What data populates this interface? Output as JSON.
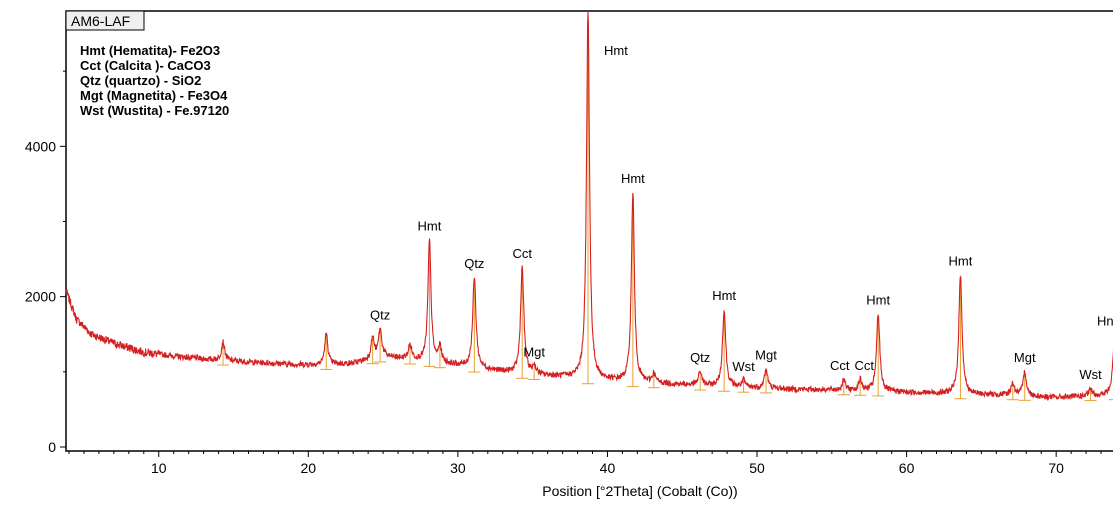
{
  "chart_data": {
    "type": "line",
    "title": "AM6-LAF",
    "xlabel": "Position [°2Theta] (Cobalt (Co))",
    "ylabel": "",
    "xlim": [
      3.8,
      74
    ],
    "ylim": [
      0,
      5800
    ],
    "xticks": [
      10,
      20,
      30,
      40,
      50,
      60,
      70
    ],
    "yticks": [
      0,
      2000,
      4000
    ],
    "grid": false,
    "legend_position": "top-left",
    "line_color": "#d42020",
    "peak_color": "#e8a030",
    "legend": [
      "Hmt (Hematita)- Fe2O3",
      "Cct (Calcita )- CaCO3",
      "Qtz (quartzo) - SiO2",
      "Mgt (Magnetita) - Fe3O4",
      "Wst (Wustita) - Fe.97120"
    ],
    "baseline": [
      [
        3.8,
        2080
      ],
      [
        4.5,
        1700
      ],
      [
        5.5,
        1500
      ],
      [
        7,
        1380
      ],
      [
        9,
        1260
      ],
      [
        11,
        1210
      ],
      [
        13,
        1170
      ],
      [
        15,
        1140
      ],
      [
        17,
        1120
      ],
      [
        19,
        1100
      ],
      [
        21,
        1090
      ],
      [
        23,
        1110
      ],
      [
        25,
        1200
      ],
      [
        27,
        1160
      ],
      [
        29,
        1110
      ],
      [
        31,
        1060
      ],
      [
        33,
        1000
      ],
      [
        35,
        960
      ],
      [
        37,
        930
      ],
      [
        40,
        880
      ],
      [
        43,
        850
      ],
      [
        46,
        820
      ],
      [
        49,
        790
      ],
      [
        52,
        770
      ],
      [
        55,
        760
      ],
      [
        58,
        740
      ],
      [
        61,
        720
      ],
      [
        64,
        700
      ],
      [
        67,
        690
      ],
      [
        70,
        660
      ],
      [
        74,
        690
      ]
    ],
    "peaks": [
      {
        "x": 14.3,
        "y": 1400,
        "label": ""
      },
      {
        "x": 21.2,
        "y": 1500,
        "label": ""
      },
      {
        "x": 24.3,
        "y": 1450,
        "label": ""
      },
      {
        "x": 24.8,
        "y": 1560,
        "label": "Qtz"
      },
      {
        "x": 26.8,
        "y": 1350,
        "label": ""
      },
      {
        "x": 28.1,
        "y": 2750,
        "label": "Hmt"
      },
      {
        "x": 28.8,
        "y": 1320,
        "label": ""
      },
      {
        "x": 31.1,
        "y": 2250,
        "label": "Qtz"
      },
      {
        "x": 34.3,
        "y": 2380,
        "label": "Cct"
      },
      {
        "x": 35.1,
        "y": 1070,
        "label": "Mgt"
      },
      {
        "x": 38.7,
        "y": 5800,
        "label": "Hmt"
      },
      {
        "x": 41.7,
        "y": 3380,
        "label": "Hmt"
      },
      {
        "x": 43.1,
        "y": 970,
        "label": ""
      },
      {
        "x": 46.2,
        "y": 1000,
        "label": "Qtz"
      },
      {
        "x": 47.8,
        "y": 1820,
        "label": "Hmt"
      },
      {
        "x": 49.1,
        "y": 880,
        "label": "Wst"
      },
      {
        "x": 50.6,
        "y": 1030,
        "label": "Mgt"
      },
      {
        "x": 55.8,
        "y": 890,
        "label": "Cct"
      },
      {
        "x": 56.9,
        "y": 890,
        "label": "Cct"
      },
      {
        "x": 58.1,
        "y": 1760,
        "label": "Hmt"
      },
      {
        "x": 63.6,
        "y": 2280,
        "label": "Hmt"
      },
      {
        "x": 67.1,
        "y": 850,
        "label": ""
      },
      {
        "x": 67.9,
        "y": 1000,
        "label": "Mgt"
      },
      {
        "x": 72.3,
        "y": 770,
        "label": "Wst"
      },
      {
        "x": 73.9,
        "y": 1480,
        "label": "Hn"
      }
    ]
  }
}
